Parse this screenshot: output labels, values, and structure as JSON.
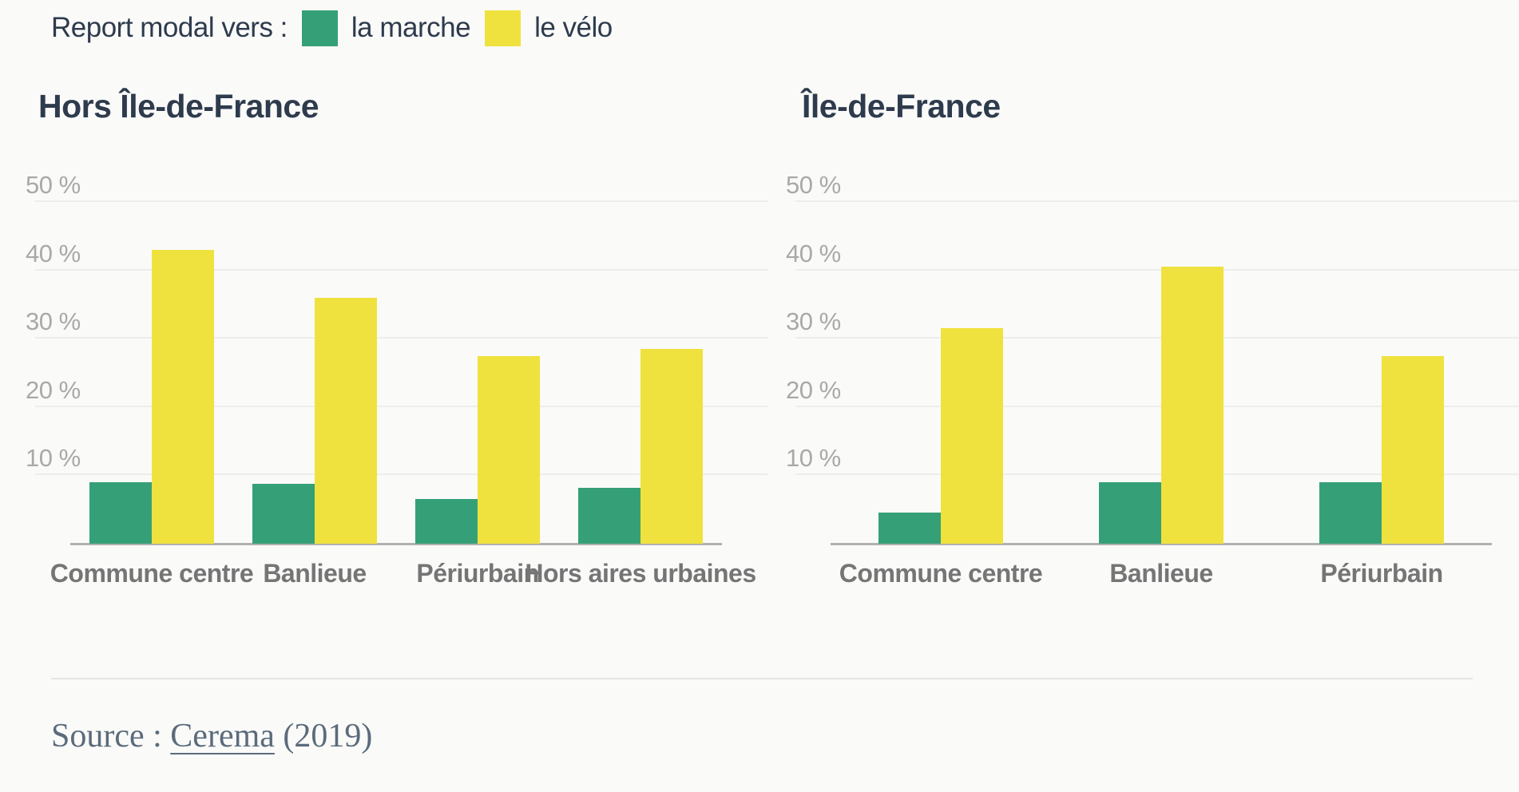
{
  "page": {
    "background": "#fafaf9"
  },
  "colors": {
    "marche_green": "#35a077",
    "velo_yellow": "#f0e23e",
    "title_text": "#2e3b4d",
    "tick_text": "#a9a9a9",
    "category_text": "#757575",
    "gridline": "#ededed",
    "axis_line": "#b1b1b1",
    "source_text": "#5b6b7b"
  },
  "legend": {
    "label": "Report modal vers :",
    "items": [
      {
        "name": "la marche",
        "color": "#35a077"
      },
      {
        "name": "le vélo",
        "color": "#f0e23e"
      }
    ]
  },
  "axis_ticks": [
    "10 %",
    "20 %",
    "30 %",
    "40 %",
    "50 %"
  ],
  "chart_data": [
    {
      "type": "bar",
      "title": "Hors Île-de-France",
      "categories": [
        "Commune centre",
        "Banlieue",
        "Périurbain",
        "Hors aires urbaines"
      ],
      "series": [
        {
          "name": "la marche",
          "color": "#35a077",
          "values": [
            9,
            8.8,
            6.5,
            8.2
          ]
        },
        {
          "name": "le vélo",
          "color": "#f0e23e",
          "values": [
            43,
            36,
            27.5,
            28.5
          ]
        }
      ],
      "ylabel": "%",
      "ylim": [
        0,
        50
      ],
      "yticks": [
        10,
        20,
        30,
        40,
        50
      ],
      "grid": true,
      "legend_position": "top-left-shared"
    },
    {
      "type": "bar",
      "title": "Île-de-France",
      "categories": [
        "Commune centre",
        "Banlieue",
        "Périurbain"
      ],
      "series": [
        {
          "name": "la marche",
          "color": "#35a077",
          "values": [
            4.5,
            9,
            9
          ]
        },
        {
          "name": "le vélo",
          "color": "#f0e23e",
          "values": [
            31.5,
            40.5,
            27.5
          ]
        }
      ],
      "ylabel": "%",
      "ylim": [
        0,
        50
      ],
      "yticks": [
        10,
        20,
        30,
        40,
        50
      ],
      "grid": true,
      "legend_position": "top-left-shared"
    }
  ],
  "source": {
    "prefix": "Source : ",
    "link": "Cerema",
    "suffix": " (2019)"
  }
}
